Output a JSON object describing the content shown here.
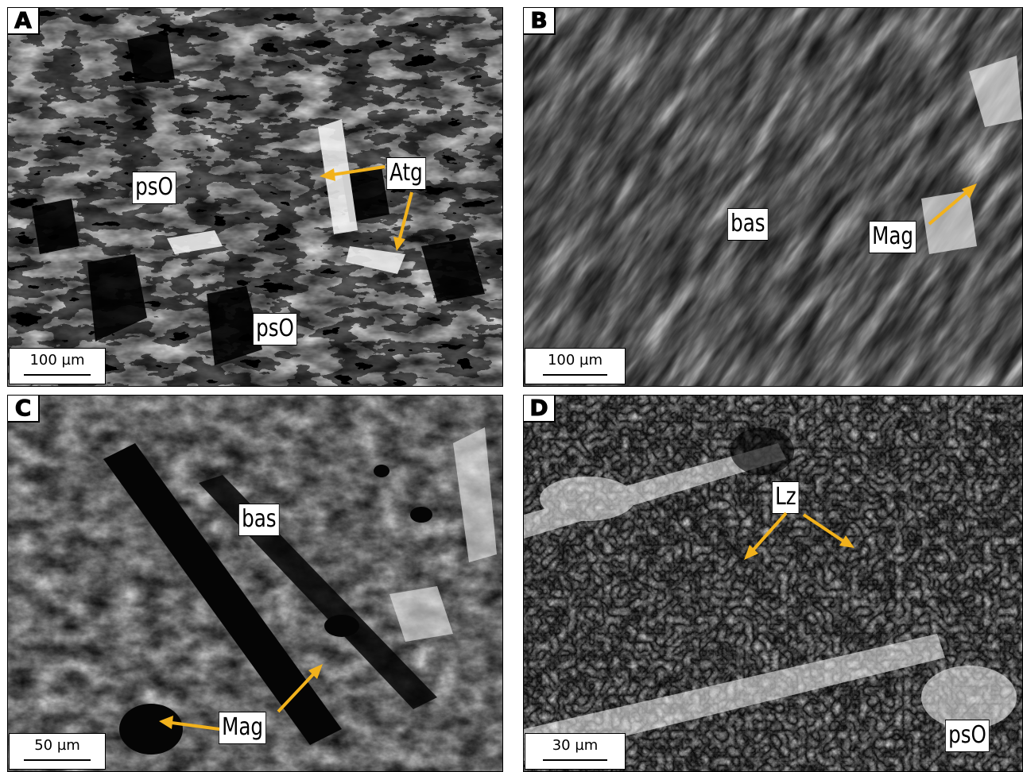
{
  "panels": [
    {
      "letter": "A",
      "labels": [
        "psO",
        "Atg",
        "psO"
      ],
      "scale_bar": "100 µm"
    },
    {
      "letter": "B",
      "labels": [
        "bas",
        "Mag"
      ],
      "scale_bar": "100 µm"
    },
    {
      "letter": "C",
      "labels": [
        "bas",
        "Mag"
      ],
      "scale_bar": "50 µm"
    },
    {
      "letter": "D",
      "labels": [
        "Lz",
        "psO"
      ],
      "scale_bar": "30 µm"
    }
  ],
  "colors": {
    "arrow": "#f2b21c",
    "label_bg": "#ffffff",
    "border": "#000000"
  }
}
